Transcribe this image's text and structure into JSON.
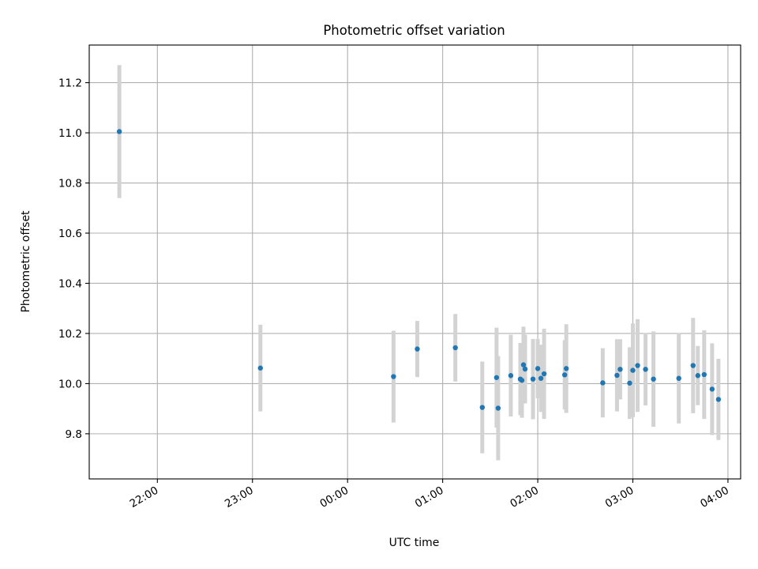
{
  "chart_data": {
    "type": "scatter",
    "title": "Photometric offset variation",
    "xlabel": "UTC time",
    "ylabel": "Photometric offset",
    "x_axis_kind": "time",
    "xlim": [
      "21:17",
      "04:08"
    ],
    "ylim": [
      9.62,
      11.35
    ],
    "x_ticks": [
      "22:00",
      "23:00",
      "00:00",
      "01:00",
      "02:00",
      "03:00",
      "04:00"
    ],
    "y_ticks": [
      9.8,
      10.0,
      10.2,
      10.4,
      10.6,
      10.8,
      11.0,
      11.2
    ],
    "grid": true,
    "marker_color": "#1f77b4",
    "errorbar_color": "#d3d3d3",
    "points": [
      {
        "t": "21:36",
        "y": 11.005,
        "err": 0.265
      },
      {
        "t": "23:05",
        "y": 10.062,
        "err": 0.173
      },
      {
        "t": "00:29",
        "y": 10.028,
        "err": 0.183
      },
      {
        "t": "00:44",
        "y": 10.138,
        "err": 0.112
      },
      {
        "t": "01:08",
        "y": 10.143,
        "err": 0.135
      },
      {
        "t": "01:25",
        "y": 9.905,
        "err": 0.183
      },
      {
        "t": "01:34",
        "y": 10.024,
        "err": 0.199
      },
      {
        "t": "01:35",
        "y": 9.902,
        "err": 0.208
      },
      {
        "t": "01:43",
        "y": 10.032,
        "err": 0.163
      },
      {
        "t": "01:49",
        "y": 10.018,
        "err": 0.144
      },
      {
        "t": "01:50",
        "y": 10.013,
        "err": 0.149
      },
      {
        "t": "01:51",
        "y": 10.075,
        "err": 0.152
      },
      {
        "t": "01:52",
        "y": 10.058,
        "err": 0.137
      },
      {
        "t": "01:57",
        "y": 10.018,
        "err": 0.16
      },
      {
        "t": "02:00",
        "y": 10.06,
        "err": 0.118
      },
      {
        "t": "02:02",
        "y": 10.021,
        "err": 0.134
      },
      {
        "t": "02:04",
        "y": 10.039,
        "err": 0.18
      },
      {
        "t": "02:17",
        "y": 10.035,
        "err": 0.138
      },
      {
        "t": "02:18",
        "y": 10.06,
        "err": 0.177
      },
      {
        "t": "02:41",
        "y": 10.003,
        "err": 0.138
      },
      {
        "t": "02:50",
        "y": 10.033,
        "err": 0.144
      },
      {
        "t": "02:52",
        "y": 10.057,
        "err": 0.12
      },
      {
        "t": "02:58",
        "y": 10.002,
        "err": 0.143
      },
      {
        "t": "03:00",
        "y": 10.053,
        "err": 0.187
      },
      {
        "t": "03:03",
        "y": 10.072,
        "err": 0.185
      },
      {
        "t": "03:08",
        "y": 10.057,
        "err": 0.144
      },
      {
        "t": "03:13",
        "y": 10.018,
        "err": 0.19
      },
      {
        "t": "03:29",
        "y": 10.021,
        "err": 0.18
      },
      {
        "t": "03:38",
        "y": 10.072,
        "err": 0.19
      },
      {
        "t": "03:41",
        "y": 10.032,
        "err": 0.118
      },
      {
        "t": "03:45",
        "y": 10.036,
        "err": 0.177
      },
      {
        "t": "03:50",
        "y": 9.978,
        "err": 0.183
      },
      {
        "t": "03:54",
        "y": 9.937,
        "err": 0.162
      }
    ]
  }
}
